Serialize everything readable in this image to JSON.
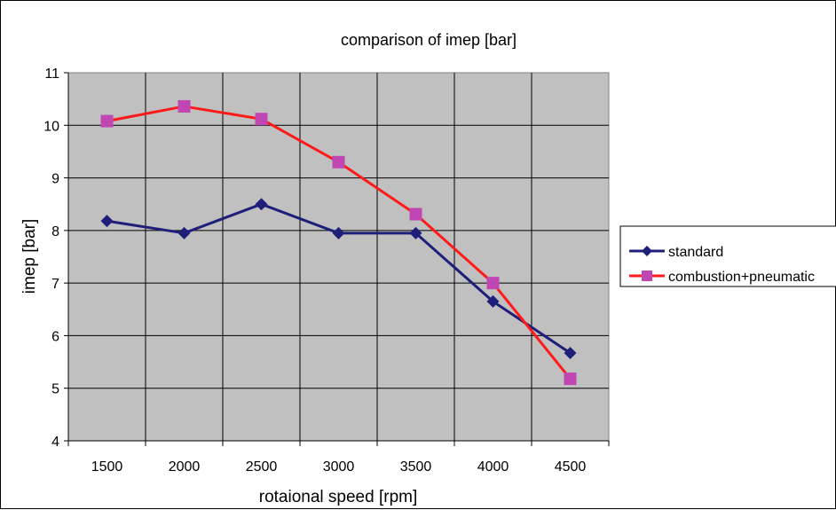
{
  "chart_data": {
    "type": "line",
    "title": "comparison of imep [bar]",
    "xlabel": "rotaional speed [rpm]",
    "ylabel": "imep [bar]",
    "categories": [
      "1500",
      "2000",
      "2500",
      "3000",
      "3500",
      "4000",
      "4500"
    ],
    "ylim": [
      4,
      11
    ],
    "yticks": [
      "4",
      "5",
      "6",
      "7",
      "8",
      "9",
      "10",
      "11"
    ],
    "grid": true,
    "legend_position": "right",
    "plot_background": "#c0c0c0",
    "series": [
      {
        "name": "standard",
        "values": [
          8.18,
          7.95,
          8.5,
          7.95,
          7.95,
          6.65,
          5.67
        ],
        "line_color": "#1f1f7a",
        "marker": "diamond",
        "marker_color": "#1f1f7a"
      },
      {
        "name": "combustion+pneumatic",
        "values": [
          10.08,
          10.36,
          10.12,
          9.3,
          8.31,
          7.0,
          5.18
        ],
        "line_color": "#ff1a1a",
        "marker": "square",
        "marker_color": "#c046b4"
      }
    ]
  }
}
